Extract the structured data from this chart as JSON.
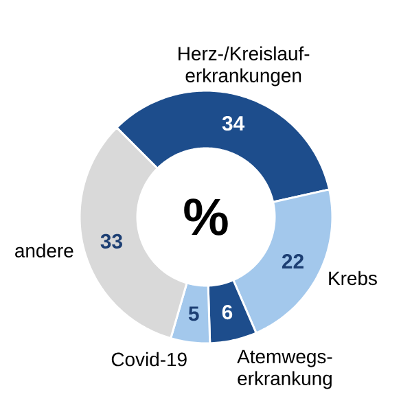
{
  "chart_data": {
    "type": "donut",
    "categories": [
      "Herz-/Kreislauf-erkrankungen",
      "Krebs",
      "Atemwegs-erkrankung",
      "Covid-19",
      "andere"
    ],
    "values": [
      34,
      22,
      6,
      5,
      33
    ],
    "colors": [
      "#1d4d8c",
      "#a3c8ec",
      "#1d4d8c",
      "#a3c8ec",
      "#d9d9d9"
    ],
    "data_labels": true,
    "annotations": [
      "%"
    ]
  }
}
